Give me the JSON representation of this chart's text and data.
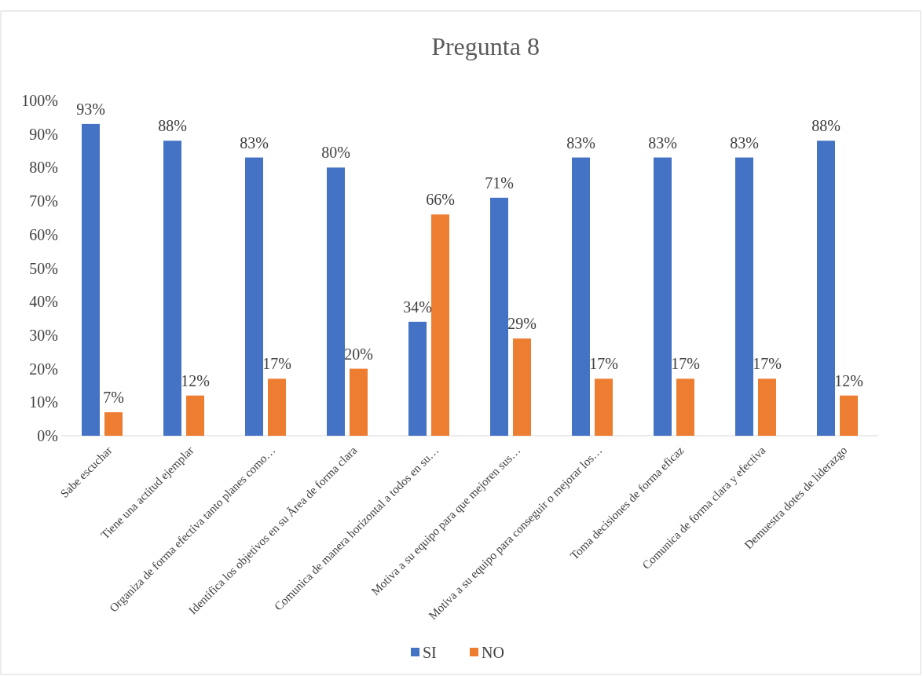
{
  "chart_data": {
    "type": "bar",
    "title": "Pregunta 8",
    "categories": [
      "Sabe escuchar",
      "Tiene una actitud ejemplar",
      "Organiza de forma efectiva tanto planes como…",
      "Identifica los objetivos en su Ãrea de forma clara",
      "Comunica de manera horizontal a todos en su…",
      "Motiva a su equipo para que mejoren sus…",
      "Motiva a su equipo para conseguir o mejorar los…",
      "Toma decisiones de forma eficaz",
      "Comunica de forma clara y efectiva",
      "Demuestra dotes de liderazgo"
    ],
    "series": [
      {
        "name": "SI",
        "color": "#4472c4",
        "values": [
          93,
          88,
          83,
          80,
          34,
          71,
          83,
          83,
          83,
          88
        ],
        "value_labels": [
          "93%",
          "88%",
          "83%",
          "80%",
          "34%",
          "71%",
          "83%",
          "83%",
          "83%",
          "88%"
        ]
      },
      {
        "name": "NO",
        "color": "#ed7d31",
        "values": [
          7,
          12,
          17,
          20,
          66,
          29,
          17,
          17,
          17,
          12
        ],
        "value_labels": [
          "7%",
          "12%",
          "17%",
          "20%",
          "66%",
          "29%",
          "17%",
          "17%",
          "17%",
          "12%"
        ]
      }
    ],
    "ylim": [
      0,
      100
    ],
    "yticks": [
      {
        "value": 0,
        "label": "0%"
      },
      {
        "value": 10,
        "label": "10%"
      },
      {
        "value": 20,
        "label": "20%"
      },
      {
        "value": 30,
        "label": "30%"
      },
      {
        "value": 40,
        "label": "40%"
      },
      {
        "value": 50,
        "label": "50%"
      },
      {
        "value": 60,
        "label": "60%"
      },
      {
        "value": 70,
        "label": "70%"
      },
      {
        "value": 80,
        "label": "80%"
      },
      {
        "value": 90,
        "label": "90%"
      },
      {
        "value": 100,
        "label": "100%"
      }
    ],
    "legend": "bottom"
  }
}
